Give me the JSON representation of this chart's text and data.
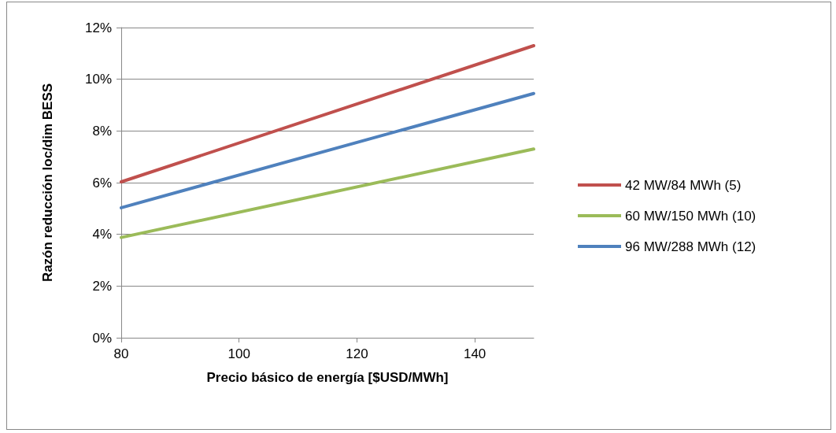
{
  "chart_data": {
    "type": "line",
    "xlabel": "Precio básico de energía [$USD/MWh]",
    "ylabel": "Razón reducción loc/dim BESS",
    "x": [
      80,
      150
    ],
    "series": [
      {
        "name": "42 MW/84 MWh (5)",
        "color": "#c0504d",
        "values": [
          6.03,
          11.3
        ]
      },
      {
        "name": "60 MW/150 MWh (10)",
        "color": "#9bbb59",
        "values": [
          3.88,
          7.3
        ]
      },
      {
        "name": "96 MW/288 MWh (12)",
        "color": "#4f81bd",
        "values": [
          5.03,
          9.45
        ]
      }
    ],
    "xlim": [
      80,
      150
    ],
    "xticks": [
      80,
      100,
      120,
      140
    ],
    "ylim": [
      0,
      12
    ],
    "yticks": [
      {
        "value": 0,
        "label": "0%"
      },
      {
        "value": 2,
        "label": "2%"
      },
      {
        "value": 4,
        "label": "4%"
      },
      {
        "value": 6,
        "label": "6%"
      },
      {
        "value": 8,
        "label": "8%"
      },
      {
        "value": 10,
        "label": "10%"
      },
      {
        "value": 12,
        "label": "12%"
      }
    ],
    "grid": "y",
    "legend": "right",
    "marker": "none",
    "line_style": "solid"
  }
}
